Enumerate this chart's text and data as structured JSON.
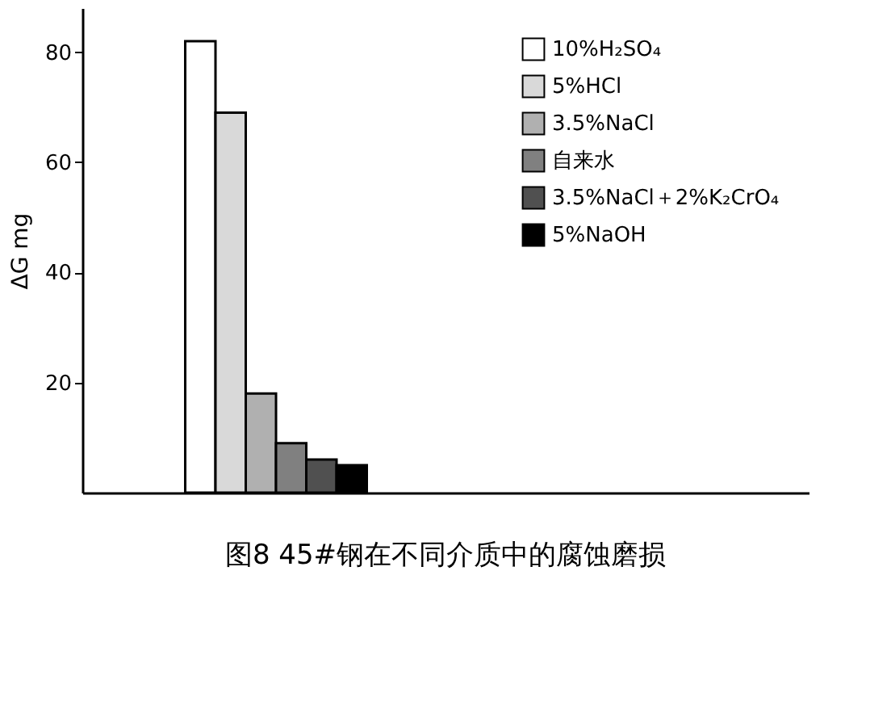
{
  "chart_data": {
    "type": "bar",
    "title": "图8 45#钢在不同介质中的腐蚀磨损",
    "ylabel": "ΔG mg",
    "categories": [
      null
    ],
    "series": [
      {
        "name": "10%H₂SO₄",
        "color": "#ffffff",
        "values": [
          82
        ]
      },
      {
        "name": "5%HCl",
        "color": "#d9d9d9",
        "values": [
          69
        ]
      },
      {
        "name": "3.5%NaCl",
        "color": "#b0b0b0",
        "values": [
          18
        ]
      },
      {
        "name": "自来水",
        "color": "#808080",
        "values": [
          9
        ]
      },
      {
        "name": "3.5%NaCl＋2%K₂CrO₄",
        "color": "#505050",
        "values": [
          6
        ]
      },
      {
        "name": "5%NaOH",
        "color": "#000000",
        "values": [
          5
        ]
      }
    ],
    "ylim": [
      0,
      88
    ],
    "yticks": [
      20,
      40,
      60,
      80
    ],
    "grid": false,
    "legend": "top right"
  }
}
